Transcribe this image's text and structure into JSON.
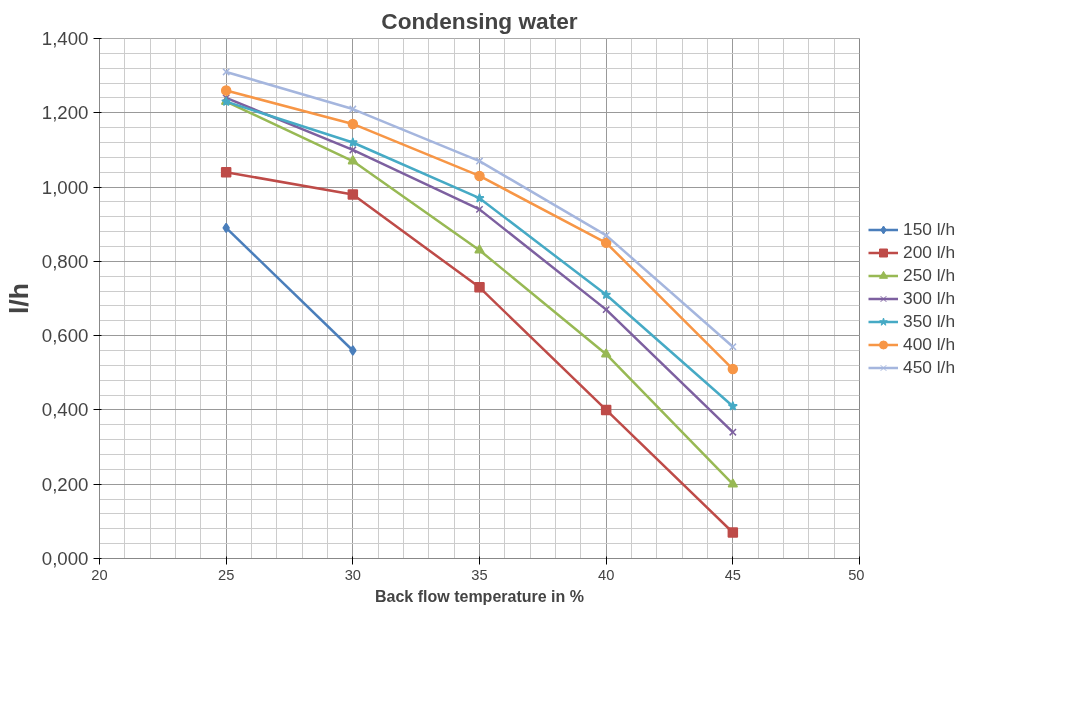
{
  "chart_data": {
    "type": "line",
    "title": "Condensing water",
    "xlabel": "Back flow temperature in %",
    "ylabel": "l/h",
    "xlim": [
      20,
      50
    ],
    "xticks": [
      20,
      25,
      30,
      35,
      40,
      45,
      50
    ],
    "ylim": [
      0,
      1.4
    ],
    "yticks": [
      {
        "value": 0,
        "label": "0,000"
      },
      {
        "value": 0.2,
        "label": "0,200"
      },
      {
        "value": 0.4,
        "label": "0,400"
      },
      {
        "value": 0.6,
        "label": "0,600"
      },
      {
        "value": 0.8,
        "label": "0,800"
      },
      {
        "value": 1.0,
        "label": "1,000"
      },
      {
        "value": 1.2,
        "label": "1,200"
      },
      {
        "value": 1.4,
        "label": "1,400"
      }
    ],
    "grid": true,
    "legend": "right",
    "series": [
      {
        "name": "150 l/h",
        "color": "#4a7ebb",
        "marker": "diamond",
        "x": [
          25,
          30
        ],
        "values": [
          0.89,
          0.56
        ]
      },
      {
        "name": "200 l/h",
        "color": "#be4b48",
        "marker": "square",
        "x": [
          25,
          30,
          35,
          40,
          45
        ],
        "values": [
          1.04,
          0.98,
          0.73,
          0.4,
          0.07
        ]
      },
      {
        "name": "250 l/h",
        "color": "#98b954",
        "marker": "triangle",
        "x": [
          25,
          30,
          35,
          40,
          45
        ],
        "values": [
          1.23,
          1.07,
          0.83,
          0.55,
          0.2
        ]
      },
      {
        "name": "300 l/h",
        "color": "#7d60a0",
        "marker": "cross",
        "x": [
          25,
          30,
          35,
          40,
          45
        ],
        "values": [
          1.24,
          1.1,
          0.94,
          0.67,
          0.34
        ]
      },
      {
        "name": "350 l/h",
        "color": "#46aac5",
        "marker": "star",
        "x": [
          25,
          30,
          35,
          40,
          45
        ],
        "values": [
          1.23,
          1.12,
          0.97,
          0.71,
          0.41
        ]
      },
      {
        "name": "400 l/h",
        "color": "#f79646",
        "marker": "circle",
        "x": [
          25,
          30,
          35,
          40,
          45
        ],
        "values": [
          1.26,
          1.17,
          1.03,
          0.85,
          0.51
        ]
      },
      {
        "name": "450 l/h",
        "color": "#a5b6de",
        "marker": "cross",
        "x": [
          25,
          30,
          35,
          40,
          45
        ],
        "values": [
          1.31,
          1.21,
          1.07,
          0.87,
          0.57
        ]
      }
    ]
  }
}
